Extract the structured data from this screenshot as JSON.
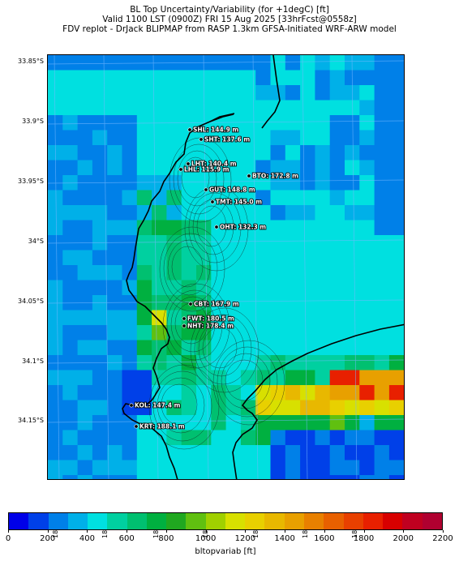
{
  "title": {
    "line1": "BL Top Uncertainty/Variability (for +1degC) [ft]",
    "line2": "Valid 1100 LST (0900Z) FRI 15 Aug 2025 [33hrFcst@0558z]",
    "line3": "FDV replot - DrJack BLIPMAP from RASP 1.3km GFSA-Initiated WRF-ARW model"
  },
  "lat_labels": [
    "33.85°S",
    "33.9°S",
    "33.95°S",
    "34°S",
    "34.05°S",
    "34.1°S",
    "34.15°S"
  ],
  "lon_labels": [
    "18.25°E",
    "18.3°E",
    "18.35°E",
    "18.4°E",
    "18.45°E",
    "18.5°E",
    "18.55°E"
  ],
  "stations": [
    {
      "label": "SHL: 144.9 m",
      "lat": -33.908,
      "lon": 18.384
    },
    {
      "label": "SHT: 137.6 m",
      "lat": -33.916,
      "lon": 18.396
    },
    {
      "label": "LHT: 140.4 m",
      "lat": -33.937,
      "lon": 18.382
    },
    {
      "label": "LHL: 115.9 m",
      "lat": -33.941,
      "lon": 18.374
    },
    {
      "label": "BTO: 172.8 m",
      "lat": -33.946,
      "lon": 18.459
    },
    {
      "label": "GUT: 148.8 m",
      "lat": -33.954,
      "lon": 18.417
    },
    {
      "label": "TMT: 145.0 m",
      "lat": -33.963,
      "lon": 18.425
    },
    {
      "label": "OHT: 132.3 m",
      "lat": -33.988,
      "lon": 18.426
    },
    {
      "label": "CBT: 167.9 m",
      "lat": -34.051,
      "lon": 18.391
    },
    {
      "label": "FWT: 180.5 m",
      "lat": -34.063,
      "lon": 18.381
    },
    {
      "label": "NHT: 178.4 m",
      "lat": -34.07,
      "lon": 18.381
    },
    {
      "label": "KOL: 147.4 m",
      "lat": -34.137,
      "lon": 18.333
    },
    {
      "label": "KRT: 188.1 m",
      "lat": -34.155,
      "lon": 18.339
    }
  ],
  "colorbar": {
    "label": "bltopvariab [ft]",
    "ticks": [
      "0",
      "200",
      "400",
      "600",
      "800",
      "1000",
      "1200",
      "1400",
      "1600",
      "1800",
      "2000",
      "2200"
    ],
    "colors": [
      "#0000e8",
      "#0040e8",
      "#0080e8",
      "#00b0e8",
      "#00e0e0",
      "#00d0a0",
      "#00c070",
      "#00b040",
      "#20a820",
      "#60c010",
      "#a0d000",
      "#d8e000",
      "#e8d000",
      "#e8b800",
      "#e8a000",
      "#e88000",
      "#e86000",
      "#e84000",
      "#e82000",
      "#d80000",
      "#c00020",
      "#b00030"
    ]
  }
}
